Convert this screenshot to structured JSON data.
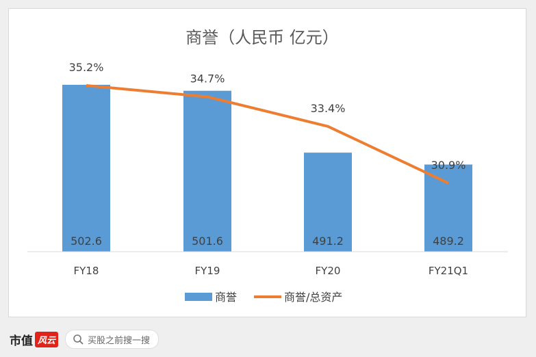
{
  "chart_data": {
    "type": "bar",
    "title": "商誉（人民币 亿元）",
    "categories": [
      "FY18",
      "FY19",
      "FY20",
      "FY21Q1"
    ],
    "series": [
      {
        "name": "商誉",
        "type": "bar",
        "values": [
          502.6,
          501.6,
          491.2,
          489.2
        ],
        "color": "#5b9bd5"
      },
      {
        "name": "商誉/总资产",
        "type": "line",
        "values": [
          35.2,
          34.7,
          33.4,
          30.9
        ],
        "labels": [
          "35.2%",
          "34.7%",
          "33.4%",
          "30.9%"
        ],
        "color": "#ed7d31"
      }
    ],
    "legend": "bottom"
  },
  "footer": {
    "brand": "市值",
    "brand_badge": "风云",
    "search_placeholder": "买股之前搜一搜"
  }
}
